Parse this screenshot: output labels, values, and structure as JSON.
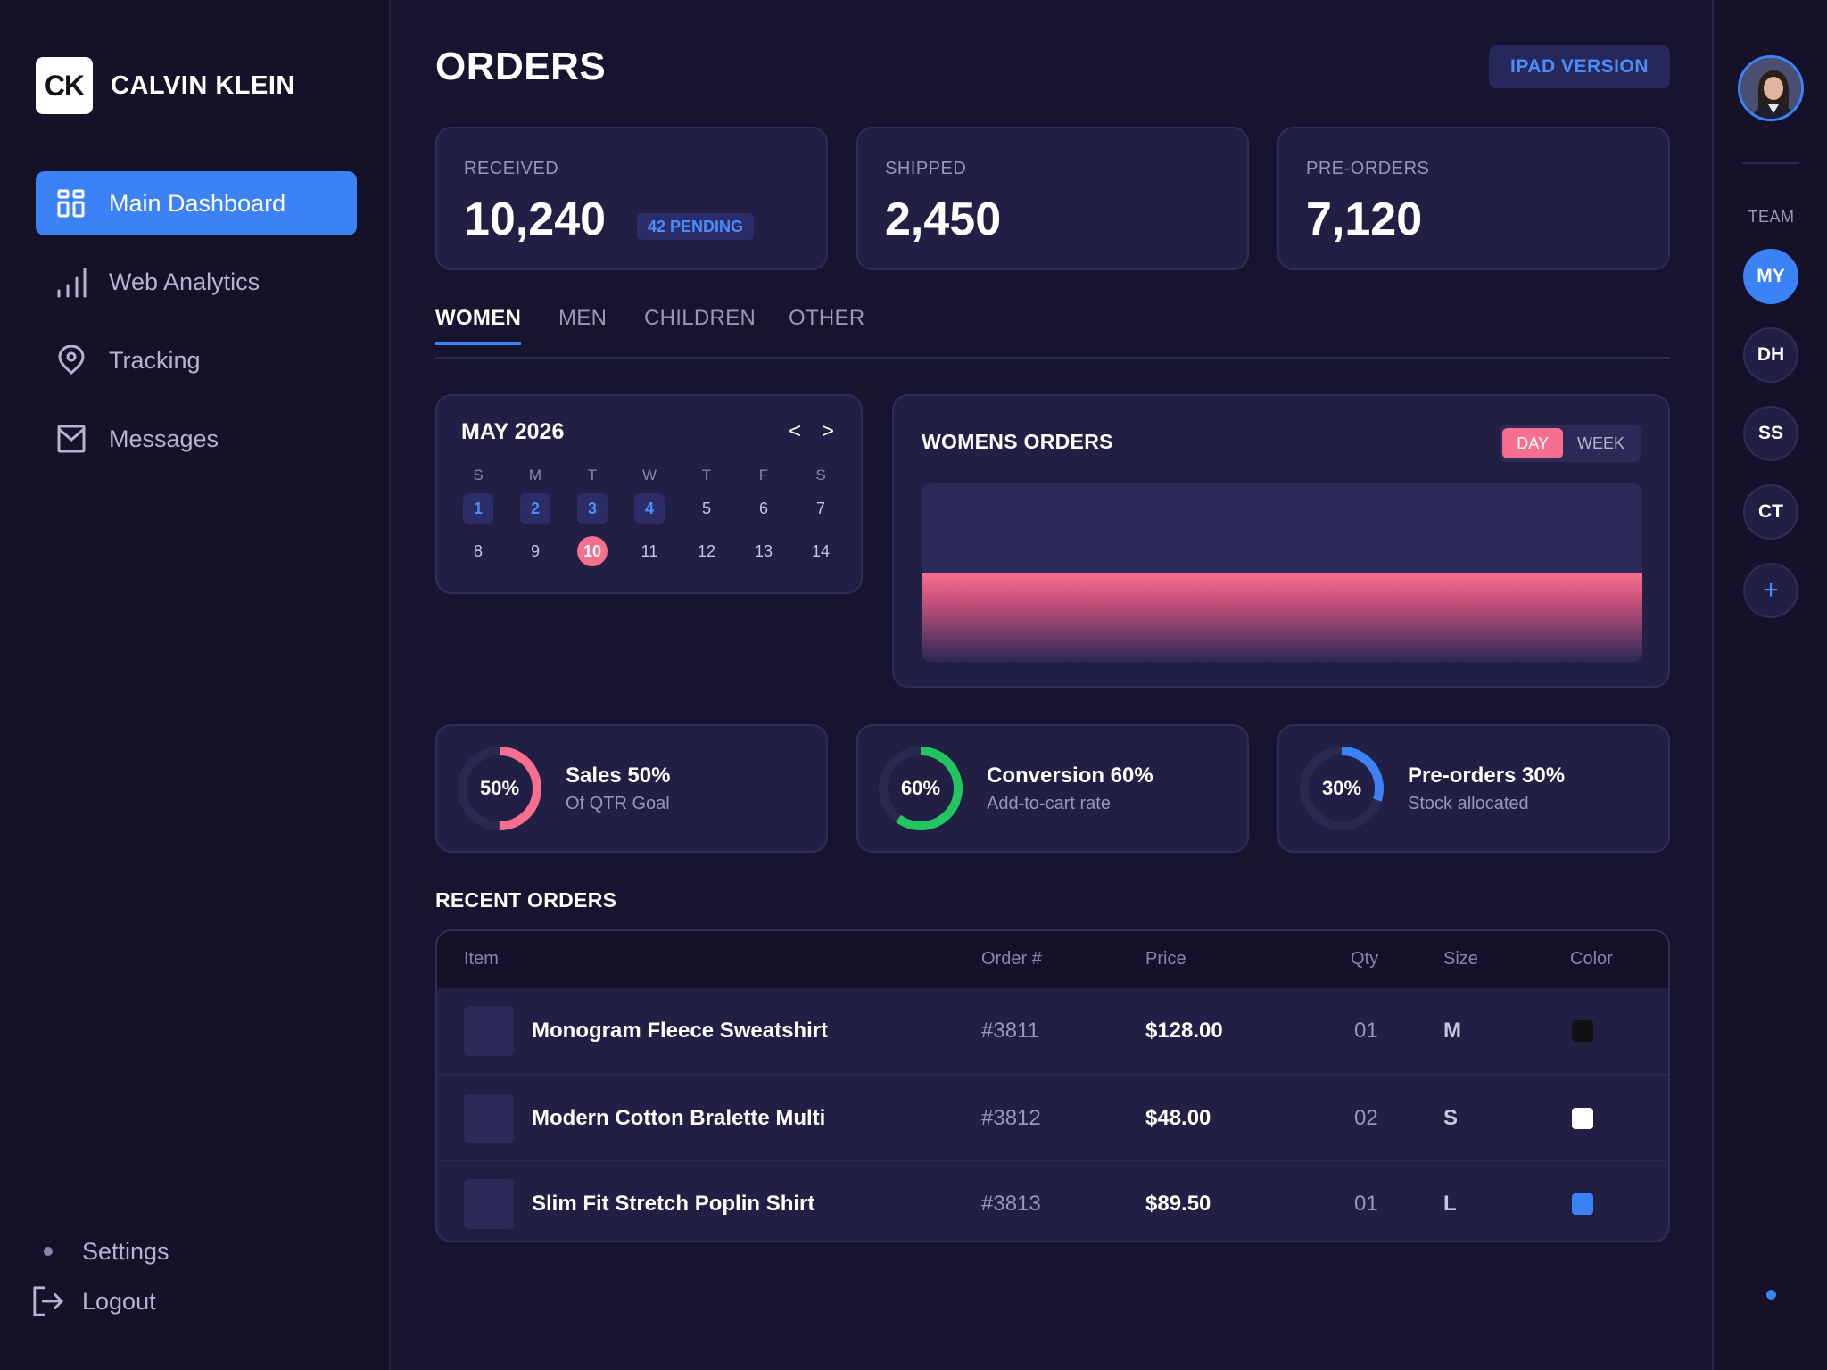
{
  "brand": {
    "logo": "CK",
    "name": "CALVIN KLEIN"
  },
  "nav": {
    "items": [
      {
        "label": "Main Dashboard",
        "icon": "dashboard-icon",
        "active": true
      },
      {
        "label": "Web Analytics",
        "icon": "bar-chart-icon",
        "active": false
      },
      {
        "label": "Tracking",
        "icon": "location-pin-icon",
        "active": false
      },
      {
        "label": "Messages",
        "icon": "mail-icon",
        "active": false
      }
    ],
    "settings_label": "Settings",
    "logout_label": "Logout"
  },
  "header": {
    "title": "ORDERS",
    "ipad_button": "IPAD VERSION"
  },
  "stats": [
    {
      "label": "RECEIVED",
      "value": "10,240",
      "badge": "42 PENDING"
    },
    {
      "label": "SHIPPED",
      "value": "2,450"
    },
    {
      "label": "PRE-ORDERS",
      "value": "7,120"
    }
  ],
  "tabs": [
    {
      "label": "WOMEN",
      "active": true
    },
    {
      "label": "MEN",
      "active": false
    },
    {
      "label": "CHILDREN",
      "active": false
    },
    {
      "label": "OTHER",
      "active": false
    }
  ],
  "calendar": {
    "title": "MAY 2026",
    "prev": "<",
    "next": ">",
    "weekdays": [
      "S",
      "M",
      "T",
      "W",
      "T",
      "F",
      "S"
    ],
    "weeks": [
      [
        "1",
        "2",
        "3",
        "4",
        "5",
        "6",
        "7"
      ],
      [
        "8",
        "9",
        "10",
        "11",
        "12",
        "13",
        "14"
      ]
    ],
    "highlighted_days": [
      "1",
      "2",
      "3",
      "4"
    ],
    "today": "10"
  },
  "womens_orders": {
    "title": "WOMENS ORDERS",
    "toggle": [
      {
        "label": "DAY",
        "active": true
      },
      {
        "label": "WEEK",
        "active": false
      }
    ],
    "fill_level": 0.5,
    "fill_color": "#f76f8e"
  },
  "metrics": [
    {
      "percent_label": "50%",
      "title": "Sales 50%",
      "subtitle": "Of QTR Goal",
      "value": 0.5,
      "color": "#f76f8e"
    },
    {
      "percent_label": "60%",
      "title": "Conversion 60%",
      "subtitle": "Add-to-cart rate",
      "value": 0.6,
      "color": "#22c55e"
    },
    {
      "percent_label": "30%",
      "title": "Pre-orders 30%",
      "subtitle": "Stock allocated",
      "value": 0.3,
      "color": "#3b82f6"
    }
  ],
  "recent_orders": {
    "title": "RECENT ORDERS",
    "columns": [
      "Item",
      "Order #",
      "Price",
      "Qty",
      "Size",
      "Color"
    ],
    "rows": [
      {
        "item": "Monogram Fleece Sweatshirt",
        "order": "#3811",
        "price": "$128.00",
        "qty": "01",
        "size": "M",
        "color": "#111111"
      },
      {
        "item": "Modern Cotton Bralette Multi",
        "order": "#3812",
        "price": "$48.00",
        "qty": "02",
        "size": "S",
        "color": "#ffffff"
      },
      {
        "item": "Slim Fit Stretch Poplin Shirt",
        "order": "#3813",
        "price": "$89.50",
        "qty": "01",
        "size": "L",
        "color": "#3b82f6"
      }
    ]
  },
  "team": {
    "label": "TEAM",
    "members": [
      {
        "initials": "MY",
        "active": true
      },
      {
        "initials": "DH",
        "active": false
      },
      {
        "initials": "SS",
        "active": false
      },
      {
        "initials": "CT",
        "active": false
      }
    ],
    "add_label": "+"
  },
  "colors": {
    "accent": "#3b82f6",
    "pink": "#f76f8e",
    "green": "#22c55e",
    "background": "#17142f"
  }
}
